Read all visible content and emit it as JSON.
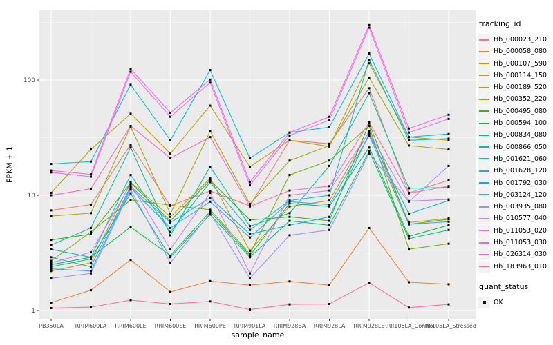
{
  "figure": {
    "colors": {
      "panel_bg": "#EBEBEB",
      "grid": "#FFFFFF",
      "tick_text": "#4D4D4D",
      "tick_mark": "#333333",
      "point": "#000000",
      "legend_key_bg": "#F2F2F2"
    }
  },
  "chart_data": {
    "type": "line",
    "title": "",
    "xlabel": "sample_name",
    "ylabel": "FPKM + 1",
    "y_scale": "log10",
    "y_ticks": [
      1,
      10,
      100
    ],
    "y_minor_ticks": [
      3.1623,
      31.623,
      316.23
    ],
    "ylim": [
      0.85,
      410
    ],
    "grid": true,
    "legend_position": "right",
    "legend_title": "tracking_id",
    "point_marker": "black-square",
    "categories": [
      "PB350LA",
      "RRIM600LA",
      "RRIM600LE",
      "RRIM600SE",
      "RRIM600PE",
      "RRIM901LA",
      "RRIM928BA",
      "RRIM928LA",
      "RRIM928LE",
      "RRII105LA_Control",
      "RRII105LA_Stressed"
    ],
    "series": [
      {
        "name": "Hb_000023_210",
        "color": "#F8766D",
        "values": [
          7.4,
          8.3,
          27.5,
          8.1,
          10.9,
          8.1,
          30,
          28,
          85,
          10.5,
          13.5
        ]
      },
      {
        "name": "Hb_000058_080",
        "color": "#EA8331",
        "values": [
          1.17,
          1.5,
          2.75,
          1.45,
          1.8,
          1.66,
          1.79,
          1.66,
          5.2,
          1.76,
          1.69
        ]
      },
      {
        "name": "Hb_000107_590",
        "color": "#D89000",
        "values": [
          2.2,
          2.6,
          13,
          6.5,
          14,
          3.3,
          8,
          9,
          36,
          5.8,
          6.3
        ]
      },
      {
        "name": "Hb_000114_150",
        "color": "#C09B00",
        "values": [
          10.5,
          25,
          51,
          23,
          60,
          17.7,
          30,
          26.5,
          140,
          32,
          30
        ]
      },
      {
        "name": "Hb_000189_520",
        "color": "#A3A500",
        "values": [
          6.6,
          7.0,
          39.5,
          6.9,
          36,
          8.4,
          20,
          27,
          105,
          27,
          25
        ]
      },
      {
        "name": "Hb_000352_220",
        "color": "#7CAE00",
        "values": [
          2.7,
          4.8,
          9.1,
          8.2,
          7.5,
          3.1,
          15,
          20,
          40,
          3.4,
          3.8
        ]
      },
      {
        "name": "Hb_000495_080",
        "color": "#39B600",
        "values": [
          4.1,
          4.6,
          12.8,
          6.0,
          13.5,
          6.1,
          6.5,
          6.0,
          42,
          5.6,
          6.2
        ]
      },
      {
        "name": "Hb_000594_100",
        "color": "#00BB4E",
        "values": [
          2.5,
          2.9,
          5.3,
          3.0,
          7.2,
          3.0,
          8.5,
          8.0,
          26,
          4.4,
          5.5
        ]
      },
      {
        "name": "Hb_000834_080",
        "color": "#00BF7D",
        "values": [
          2.4,
          2.8,
          10.4,
          2.9,
          6.8,
          2.9,
          6.0,
          5.5,
          24,
          4.2,
          5.0
        ]
      },
      {
        "name": "Hb_000866_050",
        "color": "#00C1A3",
        "values": [
          3.7,
          5.2,
          26,
          4.5,
          17.7,
          5.4,
          7.0,
          18,
          77,
          11.5,
          11.7
        ]
      },
      {
        "name": "Hb_001621_060",
        "color": "#00BFC4",
        "values": [
          3.4,
          2.9,
          15,
          4.8,
          13,
          5.0,
          9.0,
          10,
          150,
          30,
          31
        ]
      },
      {
        "name": "Hb_001628_120",
        "color": "#00BAE0",
        "values": [
          18.7,
          19.6,
          91,
          30,
          122,
          21,
          35,
          39,
          170,
          32,
          34
        ]
      },
      {
        "name": "Hb_001792_030",
        "color": "#00B0F6",
        "values": [
          2.9,
          2.4,
          12,
          5.8,
          9.5,
          4.6,
          5.5,
          6.5,
          34,
          6.9,
          9.0
        ]
      },
      {
        "name": "Hb_003124_120",
        "color": "#35A2FF",
        "values": [
          2.3,
          2.2,
          11.6,
          5.2,
          8.8,
          4.3,
          8.8,
          8.3,
          33,
          5.6,
          5.9
        ]
      },
      {
        "name": "Hb_003935_080",
        "color": "#9590FF",
        "values": [
          1.9,
          2.1,
          11.2,
          2.6,
          7.0,
          1.9,
          4.5,
          5.0,
          23,
          8.8,
          18
        ]
      },
      {
        "name": "Hb_010577_040",
        "color": "#C77CFF",
        "values": [
          2.6,
          3.2,
          12.5,
          3.4,
          10.5,
          2.1,
          10,
          11,
          35,
          8.9,
          9.2
        ]
      },
      {
        "name": "Hb_011053_020",
        "color": "#E76BF3",
        "values": [
          15.8,
          14.5,
          118,
          48,
          95,
          12.2,
          33,
          45,
          285,
          35,
          46
        ]
      },
      {
        "name": "Hb_011053_030",
        "color": "#FA62DB",
        "values": [
          16.4,
          15.2,
          125,
          52,
          101,
          13,
          35,
          48,
          300,
          38,
          50
        ]
      },
      {
        "name": "Hb_026314_030",
        "color": "#FF62BC",
        "values": [
          10.0,
          11.4,
          40,
          21,
          32,
          8.0,
          11,
          12,
          43,
          10.4,
          12
        ]
      },
      {
        "name": "Hb_183963_010",
        "color": "#FF6A98",
        "values": [
          1.05,
          1.07,
          1.23,
          1.14,
          1.2,
          1.02,
          1.13,
          1.14,
          1.74,
          1.06,
          1.13
        ]
      }
    ],
    "quant_status": {
      "title": "quant_status",
      "items": [
        "OK"
      ],
      "marker": "black-square"
    }
  }
}
